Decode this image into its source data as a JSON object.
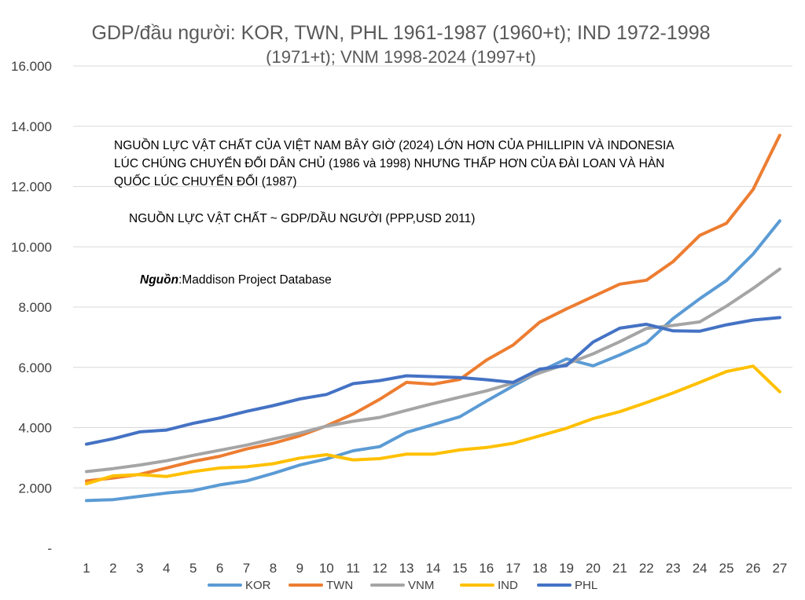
{
  "chart_data": {
    "type": "line",
    "title_line1": "GDP/đầu người: KOR, TWN, PHL 1961-1987 (1960+t); IND 1972-1998",
    "title_line2": "(1971+t); VNM 1998-2024 (1997+t)",
    "xlabel": "",
    "ylabel": "",
    "x": [
      1,
      2,
      3,
      4,
      5,
      6,
      7,
      8,
      9,
      10,
      11,
      12,
      13,
      14,
      15,
      16,
      17,
      18,
      19,
      20,
      21,
      22,
      23,
      24,
      25,
      26,
      27
    ],
    "ylim": [
      0,
      16000
    ],
    "y_ticks": [
      0,
      2000,
      4000,
      6000,
      8000,
      10000,
      12000,
      14000,
      16000
    ],
    "y_tick_labels": [
      "-",
      "2.000",
      "4.000",
      "6.000",
      "8.000",
      "10.000",
      "12.000",
      "14.000",
      "16.000"
    ],
    "grid": "horizontal",
    "legend_position": "bottom",
    "series": [
      {
        "name": "KOR",
        "color": "#5B9BD5",
        "values": [
          1580,
          1610,
          1720,
          1830,
          1910,
          2100,
          2230,
          2480,
          2760,
          2960,
          3230,
          3370,
          3840,
          4100,
          4360,
          4880,
          5380,
          5860,
          6280,
          6050,
          6410,
          6810,
          7620,
          8280,
          8880,
          9760,
          10860
        ]
      },
      {
        "name": "TWN",
        "color": "#ED7D31",
        "values": [
          2230,
          2330,
          2450,
          2660,
          2880,
          3050,
          3290,
          3480,
          3730,
          4060,
          4450,
          4940,
          5500,
          5440,
          5600,
          6240,
          6740,
          7500,
          7940,
          8350,
          8760,
          8890,
          9510,
          10380,
          10780,
          11900,
          13700
        ]
      },
      {
        "name": "VNM",
        "color": "#A5A5A5",
        "values": [
          2540,
          2640,
          2760,
          2900,
          3080,
          3250,
          3420,
          3620,
          3820,
          4050,
          4210,
          4340,
          4570,
          4800,
          5010,
          5220,
          5480,
          5820,
          6110,
          6450,
          6850,
          7290,
          7390,
          7510,
          8030,
          8620,
          9260
        ]
      },
      {
        "name": "IND",
        "color": "#FFC000",
        "values": [
          2140,
          2400,
          2440,
          2380,
          2540,
          2660,
          2700,
          2800,
          2990,
          3100,
          2930,
          2970,
          3120,
          3120,
          3260,
          3340,
          3480,
          3730,
          3980,
          4300,
          4530,
          4830,
          5150,
          5500,
          5860,
          6040,
          5190
        ]
      },
      {
        "name": "PHL",
        "color": "#4472C4",
        "values": [
          3450,
          3630,
          3860,
          3920,
          4140,
          4320,
          4540,
          4730,
          4950,
          5100,
          5460,
          5560,
          5720,
          5690,
          5660,
          5590,
          5500,
          5940,
          6060,
          6840,
          7300,
          7430,
          7210,
          7200,
          7410,
          7570,
          7650
        ]
      }
    ],
    "annotations": {
      "paragraph": [
        "NGUỒN LỰC VẬT CHẤT CỦA VIỆT NAM BÂY GIỜ (2024) LỚN HƠN CỦA PHILLIPIN VÀ INDONESIA",
        "LÚC CHÚNG CHUYỂN ĐỔI DÂN CHỦ (1986 và 1998) NHƯNG THẤP HƠN CỦA ĐÀI LOAN VÀ HÀN",
        "QUỐC LÚC CHUYỂN ĐỔI (1987)"
      ],
      "proxy": "NGUỒN LỰC VẬT CHẤT ~ GDP/DẦU NGƯỜI (PPP,USD 2011)",
      "source_label": "Nguồn",
      "source_text": ":Maddison Project Database"
    }
  }
}
